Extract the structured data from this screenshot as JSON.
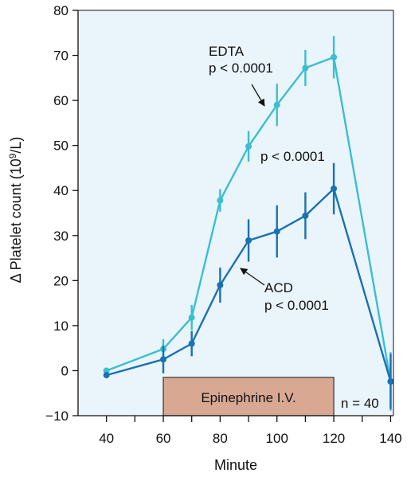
{
  "chart_data": {
    "type": "line",
    "xlabel": "Minute",
    "ylabel_main": "Δ Platelet count (10",
    "ylabel_sup": "9",
    "ylabel_end": "/L)",
    "xlim": [
      30,
      141
    ],
    "ylim": [
      -10,
      80
    ],
    "xticks": [
      40,
      60,
      80,
      100,
      120,
      140
    ],
    "xticks_minor": [
      50,
      70,
      90,
      110,
      130
    ],
    "yticks": [
      -10,
      0,
      10,
      20,
      30,
      40,
      50,
      60,
      70,
      80
    ],
    "ytick_labels": [
      "−10",
      "0",
      "10",
      "20",
      "30",
      "40",
      "50",
      "60",
      "70",
      "80"
    ],
    "grid": false,
    "background": "#eaf4fb",
    "series": [
      {
        "name": "EDTA",
        "color": "#3bbfcf",
        "x": [
          40,
          60,
          70,
          80,
          90,
          100,
          110,
          120,
          140
        ],
        "y": [
          0,
          4.8,
          11.8,
          37.8,
          49.8,
          59,
          67.2,
          69.6,
          -2.4
        ],
        "err": [
          0,
          2.2,
          2.8,
          2.5,
          3.4,
          4.7,
          4.0,
          4.7,
          6.5
        ]
      },
      {
        "name": "ACD",
        "color": "#1a72b0",
        "x": [
          40,
          60,
          70,
          80,
          90,
          100,
          110,
          120,
          140
        ],
        "y": [
          -1,
          2.5,
          6,
          19,
          28.9,
          30.9,
          34.4,
          40.4,
          -2.4
        ],
        "err": [
          0,
          3.1,
          2.8,
          3.9,
          4.7,
          5.8,
          5.2,
          5.7,
          6.1
        ]
      }
    ],
    "annotations": {
      "edta_name": "EDTA",
      "edta_p": "p < 0.0001",
      "middle_p": "p < 0.0001",
      "acd_name": "ACD",
      "acd_p": "p < 0.0001",
      "n_label": "n = 40"
    },
    "epinephrine_bar": {
      "label": "Epinephrine I.V.",
      "x_start": 60,
      "x_end": 120,
      "y_bottom": -10,
      "y_top": -1.5,
      "fill": "#d8a893",
      "stroke": "#333333"
    }
  }
}
